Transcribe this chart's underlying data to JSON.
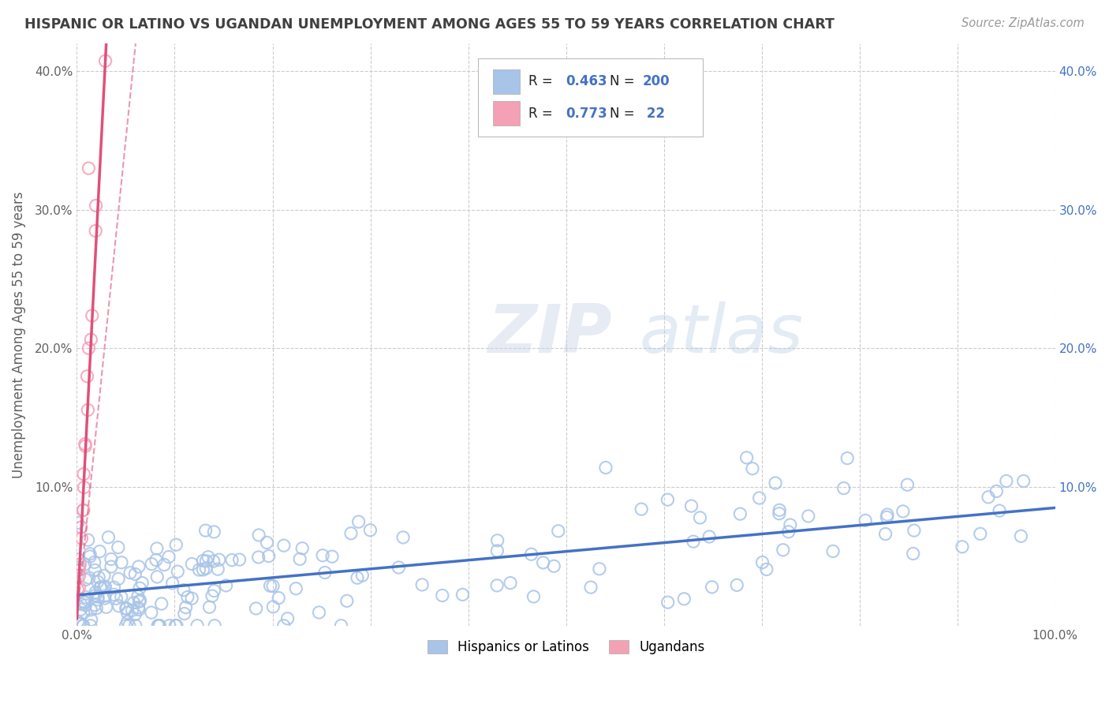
{
  "title": "HISPANIC OR LATINO VS UGANDAN UNEMPLOYMENT AMONG AGES 55 TO 59 YEARS CORRELATION CHART",
  "source": "Source: ZipAtlas.com",
  "ylabel": "Unemployment Among Ages 55 to 59 years",
  "xlim": [
    0,
    100
  ],
  "ylim": [
    0,
    42
  ],
  "blue_R": 0.463,
  "blue_N": 200,
  "pink_R": 0.773,
  "pink_N": 22,
  "blue_color": "#a8c4e8",
  "blue_line_color": "#4472c4",
  "pink_color": "#f4a0b5",
  "pink_line_color": "#e0507a",
  "legend_label_blue": "Hispanics or Latinos",
  "legend_label_pink": "Ugandans",
  "watermark_zip": "ZIP",
  "watermark_atlas": "atlas",
  "background_color": "#ffffff",
  "grid_color": "#cccccc",
  "title_color": "#404040",
  "axis_color": "#606060",
  "right_tick_color": "#4472c4",
  "seed": 99,
  "blue_line_x0": 0,
  "blue_line_x1": 100,
  "blue_line_y0": 2.2,
  "blue_line_y1": 8.5,
  "pink_line_x0": 0,
  "pink_line_x1": 3.0,
  "pink_line_y0": 0.5,
  "pink_line_y1": 42,
  "pink_dash_x0": 0,
  "pink_dash_x1": 6.0,
  "pink_dash_y0": 0.5,
  "pink_dash_y1": 42
}
